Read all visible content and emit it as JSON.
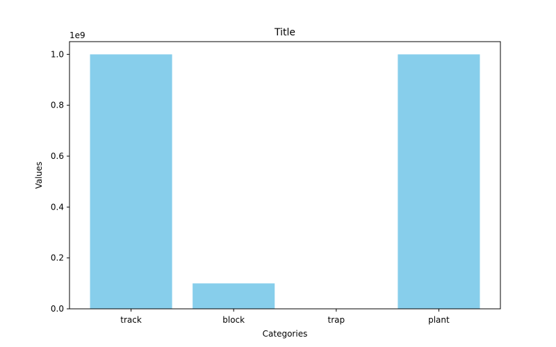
{
  "chart_data": {
    "type": "bar",
    "title": "Title",
    "xlabel": "Categories",
    "ylabel": "Values",
    "categories": [
      "track",
      "block",
      "trap",
      "plant"
    ],
    "values": [
      1000000000,
      100000000,
      10,
      1000000000
    ],
    "ylim": [
      0,
      1050000000
    ],
    "yticks": [
      0,
      200000000,
      400000000,
      600000000,
      800000000,
      1000000000
    ],
    "ytick_labels": [
      "0.0",
      "0.2",
      "0.4",
      "0.6",
      "0.8",
      "1.0"
    ],
    "y_offset_label": "1e9",
    "bar_color": "#87ceeb",
    "grid": false,
    "legend": "none"
  }
}
